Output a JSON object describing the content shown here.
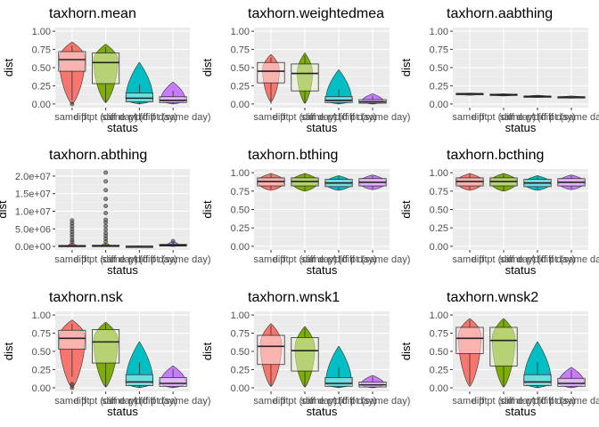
{
  "figure": {
    "categories": [
      "same pt",
      "diff pt (diff day)",
      "same pt (diff day)",
      "diff pt (same day)"
    ],
    "category_tick_labels": [
      "same pt",
      "diff pt (diff day)",
      "same pt (diff day)",
      "diff pt (same day)"
    ],
    "fill_colors": [
      "#F8766D",
      "#7CAE00",
      "#00BFC4",
      "#C77CFF"
    ]
  },
  "chart_data": [
    {
      "type": "boxplot+violin",
      "title": "taxhorn.mean",
      "xlabel": "status",
      "ylabel": "dist",
      "ylim": [
        -0.05,
        1.05
      ],
      "yticks": [
        0,
        0.25,
        0.5,
        0.75,
        1
      ],
      "ytick_labels": [
        "0.00",
        "0.25",
        "0.50",
        "0.75",
        "1.00"
      ],
      "groups": [
        {
          "q1": 0.45,
          "median": 0.61,
          "q3": 0.72,
          "whisker_low": 0.05,
          "whisker_high": 0.8,
          "violin_min": 0.0,
          "violin_max": 0.85,
          "violin_width": 0.85,
          "violin_peak": 0.63,
          "outliers": [
            0.0
          ]
        },
        {
          "q1": 0.28,
          "median": 0.57,
          "q3": 0.7,
          "whisker_low": 0.02,
          "whisker_high": 0.78,
          "violin_min": 0.02,
          "violin_max": 0.82,
          "violin_width": 0.8,
          "violin_peak": 0.6,
          "outliers": []
        },
        {
          "q1": 0.03,
          "median": 0.08,
          "q3": 0.15,
          "whisker_low": 0.0,
          "whisker_high": 0.27,
          "violin_min": 0.0,
          "violin_max": 0.57,
          "violin_width": 0.9,
          "violin_peak": 0.07,
          "outliers": []
        },
        {
          "q1": 0.02,
          "median": 0.05,
          "q3": 0.1,
          "whisker_low": 0.0,
          "whisker_high": 0.18,
          "violin_min": 0.0,
          "violin_max": 0.3,
          "violin_width": 0.8,
          "violin_peak": 0.06,
          "outliers": []
        }
      ]
    },
    {
      "type": "boxplot+violin",
      "title": "taxhorn.weightedmea",
      "xlabel": "status",
      "ylabel": "dist",
      "ylim": [
        -0.05,
        1.05
      ],
      "yticks": [
        0,
        0.25,
        0.5,
        0.75,
        1
      ],
      "ytick_labels": [
        "0.00",
        "0.25",
        "0.50",
        "0.75",
        "1.00"
      ],
      "groups": [
        {
          "q1": 0.29,
          "median": 0.45,
          "q3": 0.57,
          "whisker_low": 0.0,
          "whisker_high": 0.64,
          "violin_min": 0.03,
          "violin_max": 0.68,
          "violin_width": 0.55,
          "violin_peak": 0.47,
          "outliers": []
        },
        {
          "q1": 0.18,
          "median": 0.42,
          "q3": 0.55,
          "whisker_low": 0.01,
          "whisker_high": 0.67,
          "violin_min": 0.01,
          "violin_max": 0.7,
          "violin_width": 0.5,
          "violin_peak": 0.43,
          "outliers": []
        },
        {
          "q1": 0.02,
          "median": 0.05,
          "q3": 0.1,
          "whisker_low": 0.0,
          "whisker_high": 0.2,
          "violin_min": 0.0,
          "violin_max": 0.47,
          "violin_width": 0.85,
          "violin_peak": 0.05,
          "outliers": []
        },
        {
          "q1": 0.01,
          "median": 0.03,
          "q3": 0.06,
          "whisker_low": 0.0,
          "whisker_high": 0.11,
          "violin_min": 0.0,
          "violin_max": 0.14,
          "violin_width": 0.7,
          "violin_peak": 0.04,
          "outliers": []
        }
      ]
    },
    {
      "type": "boxplot+violin",
      "title": "taxhorn.aabthing",
      "xlabel": "status",
      "ylabel": "dist",
      "ylim": [
        -0.05,
        1.05
      ],
      "yticks": [
        0,
        0.25,
        0.5,
        0.75,
        1
      ],
      "ytick_labels": [
        "0.00",
        "0.25",
        "0.50",
        "0.75",
        "1.00"
      ],
      "groups": [
        {
          "q1": 0.135,
          "median": 0.14,
          "q3": 0.145,
          "whisker_low": 0.13,
          "whisker_high": 0.15,
          "violin_min": 0.12,
          "violin_max": 0.15,
          "violin_width": 0.8,
          "violin_peak": 0.14,
          "outliers": []
        },
        {
          "q1": 0.125,
          "median": 0.13,
          "q3": 0.135,
          "whisker_low": 0.12,
          "whisker_high": 0.14,
          "violin_min": 0.11,
          "violin_max": 0.14,
          "violin_width": 0.8,
          "violin_peak": 0.13,
          "outliers": []
        },
        {
          "q1": 0.1,
          "median": 0.105,
          "q3": 0.11,
          "whisker_low": 0.095,
          "whisker_high": 0.115,
          "violin_min": 0.09,
          "violin_max": 0.12,
          "violin_width": 0.7,
          "violin_peak": 0.105,
          "outliers": []
        },
        {
          "q1": 0.09,
          "median": 0.095,
          "q3": 0.1,
          "whisker_low": 0.085,
          "whisker_high": 0.105,
          "violin_min": 0.08,
          "violin_max": 0.11,
          "violin_width": 0.7,
          "violin_peak": 0.095,
          "outliers": []
        }
      ]
    },
    {
      "type": "boxplot+violin",
      "title": "taxhorn.abthing",
      "xlabel": "status",
      "ylabel": "dist",
      "ylim": [
        -1000000,
        22000000
      ],
      "yticks": [
        0,
        5000000,
        10000000,
        15000000,
        20000000
      ],
      "ytick_labels": [
        "0.0e+00",
        "5.0e+06",
        "1.0e+07",
        "1.5e+07",
        "2.0e+07"
      ],
      "groups": [
        {
          "q1": 0,
          "median": 80000,
          "q3": 300000,
          "whisker_low": 0,
          "whisker_high": 600000,
          "violin_min": 0,
          "violin_max": 900000,
          "violin_width": 0.3,
          "violin_peak": 100000,
          "outliers": [
            1200000,
            1800000,
            2600000,
            3400000,
            4200000,
            5000000,
            5800000,
            6600000,
            7400000
          ]
        },
        {
          "q1": 0,
          "median": 90000,
          "q3": 350000,
          "whisker_low": 0,
          "whisker_high": 700000,
          "violin_min": 0,
          "violin_max": 1000000,
          "violin_width": 0.3,
          "violin_peak": 100000,
          "outliers": [
            1400000,
            2200000,
            3000000,
            3800000,
            4800000,
            5800000,
            6800000,
            7600000,
            9500000,
            11500000,
            13500000,
            16000000,
            18500000,
            21000000
          ]
        },
        {
          "q1": 0,
          "median": 20000,
          "q3": 60000,
          "whisker_low": 0,
          "whisker_high": 120000,
          "violin_min": 0,
          "violin_max": 200000,
          "violin_width": 0.3,
          "violin_peak": 20000,
          "outliers": []
        },
        {
          "q1": 100000,
          "median": 300000,
          "q3": 600000,
          "whisker_low": 0,
          "whisker_high": 1200000,
          "violin_min": 0,
          "violin_max": 1400000,
          "violin_width": 0.4,
          "violin_peak": 300000,
          "outliers": [
            1500000
          ]
        }
      ]
    },
    {
      "type": "boxplot+violin",
      "title": "taxhorn.bthing",
      "xlabel": "status",
      "ylabel": "dist",
      "ylim": [
        -0.05,
        1.05
      ],
      "yticks": [
        0,
        0.25,
        0.5,
        0.75,
        1
      ],
      "ytick_labels": [
        "0.00",
        "0.25",
        "0.50",
        "0.75",
        "1.00"
      ],
      "groups": [
        {
          "q1": 0.82,
          "median": 0.88,
          "q3": 0.93,
          "whisker_low": 0.77,
          "whisker_high": 0.98,
          "violin_min": 0.76,
          "violin_max": 0.99,
          "violin_width": 0.9,
          "violin_peak": 0.88,
          "outliers": []
        },
        {
          "q1": 0.82,
          "median": 0.88,
          "q3": 0.93,
          "whisker_low": 0.76,
          "whisker_high": 0.98,
          "violin_min": 0.75,
          "violin_max": 0.99,
          "violin_width": 0.9,
          "violin_peak": 0.88,
          "outliers": []
        },
        {
          "q1": 0.81,
          "median": 0.86,
          "q3": 0.91,
          "whisker_low": 0.77,
          "whisker_high": 0.95,
          "violin_min": 0.76,
          "violin_max": 0.96,
          "violin_width": 0.9,
          "violin_peak": 0.86,
          "outliers": []
        },
        {
          "q1": 0.82,
          "median": 0.87,
          "q3": 0.92,
          "whisker_low": 0.78,
          "whisker_high": 0.96,
          "violin_min": 0.77,
          "violin_max": 0.97,
          "violin_width": 0.9,
          "violin_peak": 0.87,
          "outliers": []
        }
      ]
    },
    {
      "type": "boxplot+violin",
      "title": "taxhorn.bcthing",
      "xlabel": "status",
      "ylabel": "dist",
      "ylim": [
        -0.05,
        1.05
      ],
      "yticks": [
        0,
        0.25,
        0.5,
        0.75,
        1
      ],
      "ytick_labels": [
        "0.00",
        "0.25",
        "0.50",
        "0.75",
        "1.00"
      ],
      "groups": [
        {
          "q1": 0.82,
          "median": 0.88,
          "q3": 0.93,
          "whisker_low": 0.77,
          "whisker_high": 0.98,
          "violin_min": 0.76,
          "violin_max": 0.99,
          "violin_width": 0.9,
          "violin_peak": 0.88,
          "outliers": []
        },
        {
          "q1": 0.82,
          "median": 0.88,
          "q3": 0.93,
          "whisker_low": 0.76,
          "whisker_high": 0.98,
          "violin_min": 0.75,
          "violin_max": 0.99,
          "violin_width": 0.9,
          "violin_peak": 0.88,
          "outliers": []
        },
        {
          "q1": 0.81,
          "median": 0.86,
          "q3": 0.91,
          "whisker_low": 0.77,
          "whisker_high": 0.95,
          "violin_min": 0.76,
          "violin_max": 0.96,
          "violin_width": 0.9,
          "violin_peak": 0.86,
          "outliers": []
        },
        {
          "q1": 0.82,
          "median": 0.87,
          "q3": 0.92,
          "whisker_low": 0.78,
          "whisker_high": 0.96,
          "violin_min": 0.77,
          "violin_max": 0.97,
          "violin_width": 0.9,
          "violin_peak": 0.87,
          "outliers": []
        }
      ]
    },
    {
      "type": "boxplot+violin",
      "title": "taxhorn.nsk",
      "xlabel": "status",
      "ylabel": "dist",
      "ylim": [
        -0.05,
        1.05
      ],
      "yticks": [
        0,
        0.25,
        0.5,
        0.75,
        1
      ],
      "ytick_labels": [
        "0.00",
        "0.25",
        "0.50",
        "0.75",
        "1.00"
      ],
      "groups": [
        {
          "q1": 0.53,
          "median": 0.68,
          "q3": 0.79,
          "whisker_low": 0.15,
          "whisker_high": 0.88,
          "violin_min": 0.0,
          "violin_max": 0.93,
          "violin_width": 0.85,
          "violin_peak": 0.7,
          "outliers": [
            0.0,
            0.05
          ]
        },
        {
          "q1": 0.34,
          "median": 0.63,
          "q3": 0.8,
          "whisker_low": 0.01,
          "whisker_high": 0.88,
          "violin_min": 0.01,
          "violin_max": 0.9,
          "violin_width": 0.8,
          "violin_peak": 0.66,
          "outliers": []
        },
        {
          "q1": 0.03,
          "median": 0.08,
          "q3": 0.18,
          "whisker_low": 0.0,
          "whisker_high": 0.35,
          "violin_min": 0.0,
          "violin_max": 0.63,
          "violin_width": 0.9,
          "violin_peak": 0.08,
          "outliers": []
        },
        {
          "q1": 0.02,
          "median": 0.06,
          "q3": 0.14,
          "whisker_low": 0.0,
          "whisker_high": 0.26,
          "violin_min": 0.0,
          "violin_max": 0.3,
          "violin_width": 0.85,
          "violin_peak": 0.07,
          "outliers": []
        }
      ]
    },
    {
      "type": "boxplot+violin",
      "title": "taxhorn.wnsk1",
      "xlabel": "status",
      "ylabel": "dist",
      "ylim": [
        -0.05,
        1.05
      ],
      "yticks": [
        0,
        0.25,
        0.5,
        0.75,
        1
      ],
      "ytick_labels": [
        "0.00",
        "0.25",
        "0.50",
        "0.75",
        "1.00"
      ],
      "groups": [
        {
          "q1": 0.32,
          "median": 0.57,
          "q3": 0.72,
          "whisker_low": 0.02,
          "whisker_high": 0.85,
          "violin_min": 0.02,
          "violin_max": 0.88,
          "violin_width": 0.7,
          "violin_peak": 0.6,
          "outliers": []
        },
        {
          "q1": 0.23,
          "median": 0.51,
          "q3": 0.69,
          "whisker_low": 0.01,
          "whisker_high": 0.82,
          "violin_min": 0.01,
          "violin_max": 0.84,
          "violin_width": 0.65,
          "violin_peak": 0.55,
          "outliers": []
        },
        {
          "q1": 0.02,
          "median": 0.06,
          "q3": 0.14,
          "whisker_low": 0.0,
          "whisker_high": 0.28,
          "violin_min": 0.0,
          "violin_max": 0.57,
          "violin_width": 0.85,
          "violin_peak": 0.06,
          "outliers": []
        },
        {
          "q1": 0.01,
          "median": 0.04,
          "q3": 0.08,
          "whisker_low": 0.0,
          "whisker_high": 0.15,
          "violin_min": 0.0,
          "violin_max": 0.17,
          "violin_width": 0.75,
          "violin_peak": 0.05,
          "outliers": []
        }
      ]
    },
    {
      "type": "boxplot+violin",
      "title": "taxhorn.wnsk2",
      "xlabel": "status",
      "ylabel": "dist",
      "ylim": [
        -0.05,
        1.05
      ],
      "yticks": [
        0,
        0.25,
        0.5,
        0.75,
        1
      ],
      "ytick_labels": [
        "0.00",
        "0.25",
        "0.50",
        "0.75",
        "1.00"
      ],
      "groups": [
        {
          "q1": 0.47,
          "median": 0.68,
          "q3": 0.83,
          "whisker_low": 0.05,
          "whisker_high": 0.93,
          "violin_min": 0.02,
          "violin_max": 0.95,
          "violin_width": 0.75,
          "violin_peak": 0.72,
          "outliers": []
        },
        {
          "q1": 0.3,
          "median": 0.65,
          "q3": 0.83,
          "whisker_low": 0.01,
          "whisker_high": 0.93,
          "violin_min": 0.01,
          "violin_max": 0.95,
          "violin_width": 0.75,
          "violin_peak": 0.68,
          "outliers": []
        },
        {
          "q1": 0.03,
          "median": 0.08,
          "q3": 0.18,
          "whisker_low": 0.0,
          "whisker_high": 0.35,
          "violin_min": 0.0,
          "violin_max": 0.63,
          "violin_width": 0.9,
          "violin_peak": 0.08,
          "outliers": []
        },
        {
          "q1": 0.02,
          "median": 0.06,
          "q3": 0.13,
          "whisker_low": 0.0,
          "whisker_high": 0.24,
          "violin_min": 0.0,
          "violin_max": 0.28,
          "violin_width": 0.85,
          "violin_peak": 0.07,
          "outliers": []
        }
      ]
    }
  ]
}
